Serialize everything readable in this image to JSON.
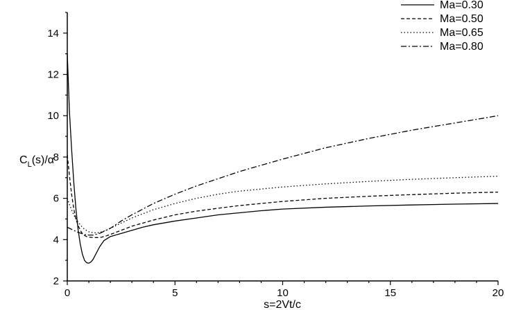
{
  "chart_data": {
    "type": "line",
    "xlabel": "s=2Vt/c",
    "ylabel_main": "C",
    "ylabel_sub": "L",
    "ylabel_rest": "(s)/α",
    "xlim": [
      0,
      20
    ],
    "ylim": [
      2,
      15
    ],
    "xticks": [
      "0",
      "5",
      "10",
      "15",
      "20"
    ],
    "yticks": [
      "2",
      "4",
      "6",
      "8",
      "10",
      "12",
      "14"
    ],
    "xtick_values": [
      0,
      5,
      10,
      15,
      20
    ],
    "ytick_values": [
      2,
      4,
      6,
      8,
      10,
      12,
      14
    ],
    "legend_position": "top-right",
    "grid": false,
    "series": [
      {
        "name": "Ma=0.30",
        "dash": "solid",
        "x": [
          0,
          0.1,
          0.2,
          0.3,
          0.4,
          0.5,
          0.6,
          0.7,
          0.8,
          0.9,
          1.0,
          1.1,
          1.2,
          1.3,
          1.5,
          1.7,
          2.0,
          2.5,
          3.0,
          3.5,
          4.0,
          5.0,
          6.0,
          7.0,
          8.0,
          9.0,
          10.0,
          12.0,
          14.0,
          16.0,
          18.0,
          20.0
        ],
        "y": [
          13.0,
          10.2,
          8.4,
          6.8,
          5.5,
          4.5,
          3.8,
          3.3,
          3.0,
          2.88,
          2.86,
          2.92,
          3.05,
          3.25,
          3.65,
          3.95,
          4.15,
          4.3,
          4.45,
          4.6,
          4.72,
          4.9,
          5.05,
          5.2,
          5.3,
          5.4,
          5.48,
          5.57,
          5.63,
          5.68,
          5.72,
          5.75
        ]
      },
      {
        "name": "Ma=0.50",
        "dash": "5,3",
        "x": [
          0,
          0.1,
          0.2,
          0.3,
          0.4,
          0.5,
          0.6,
          0.7,
          0.8,
          0.9,
          1.0,
          1.2,
          1.4,
          1.6,
          1.8,
          2.0,
          2.5,
          3.0,
          4.0,
          5.0,
          6.0,
          7.0,
          8.0,
          10.0,
          12.0,
          14.0,
          16.0,
          18.0,
          20.0
        ],
        "y": [
          8.1,
          7.1,
          6.2,
          5.5,
          5.0,
          4.7,
          4.45,
          4.3,
          4.2,
          4.15,
          4.12,
          4.1,
          4.1,
          4.12,
          4.18,
          4.25,
          4.45,
          4.65,
          4.95,
          5.2,
          5.38,
          5.52,
          5.65,
          5.85,
          6.0,
          6.1,
          6.18,
          6.25,
          6.3
        ]
      },
      {
        "name": "Ma=0.65",
        "dash": "1.5,3",
        "x": [
          0,
          0.1,
          0.2,
          0.3,
          0.4,
          0.5,
          0.6,
          0.7,
          0.8,
          1.0,
          1.2,
          1.4,
          1.6,
          1.8,
          2.0,
          2.5,
          3.0,
          4.0,
          5.0,
          6.0,
          7.0,
          8.0,
          10.0,
          12.0,
          14.0,
          16.0,
          18.0,
          20.0
        ],
        "y": [
          6.0,
          5.7,
          5.45,
          5.2,
          5.0,
          4.85,
          4.72,
          4.6,
          4.5,
          4.38,
          4.33,
          4.33,
          4.38,
          4.45,
          4.55,
          4.8,
          5.05,
          5.45,
          5.75,
          6.0,
          6.2,
          6.35,
          6.55,
          6.7,
          6.82,
          6.92,
          7.0,
          7.07
        ]
      },
      {
        "name": "Ma=0.80",
        "dash": "8,3,2,3",
        "x": [
          0,
          0.1,
          0.2,
          0.3,
          0.4,
          0.5,
          0.6,
          0.7,
          0.8,
          1.0,
          1.2,
          1.5,
          2.0,
          2.5,
          3.0,
          4.0,
          5.0,
          6.0,
          7.0,
          8.0,
          9.0,
          10.0,
          12.0,
          14.0,
          16.0,
          18.0,
          20.0
        ],
        "y": [
          4.6,
          4.55,
          4.5,
          4.45,
          4.4,
          4.35,
          4.32,
          4.28,
          4.25,
          4.22,
          4.22,
          4.3,
          4.55,
          4.9,
          5.2,
          5.75,
          6.2,
          6.6,
          6.95,
          7.3,
          7.6,
          7.9,
          8.45,
          8.9,
          9.3,
          9.65,
          10.0
        ]
      }
    ]
  }
}
